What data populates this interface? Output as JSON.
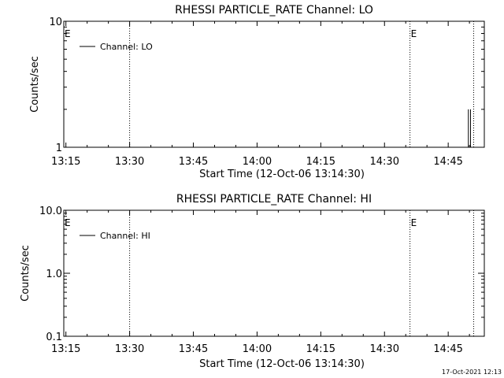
{
  "footer": {
    "timestamp": "17-Oct-2021 12:13"
  },
  "chart_data": [
    {
      "type": "line",
      "title": "RHESSI PARTICLE_RATE Channel: LO",
      "xlabel": "Start Time (12-Oct-06 13:14:30)",
      "ylabel": "Counts/sec",
      "y_scale": "log",
      "ylim": [
        1,
        10
      ],
      "xlim": [
        "13:14:30",
        "14:53:30"
      ],
      "x_ticks": [
        "13:15",
        "13:30",
        "13:45",
        "14:00",
        "14:15",
        "14:30",
        "14:45"
      ],
      "y_ticks": [
        {
          "value": 1,
          "label": "1"
        },
        {
          "value": 10,
          "label": "10"
        }
      ],
      "legend": {
        "position": "top-left",
        "entries": [
          {
            "label": "Channel: LO",
            "color": "#000000"
          }
        ]
      },
      "vlines": [
        {
          "x": "13:30",
          "style": "dotted",
          "label": ""
        },
        {
          "x": "14:36",
          "style": "dotted",
          "label": "E"
        },
        {
          "x": "14:51",
          "style": "dotted",
          "label": ""
        }
      ],
      "edge_marker": "E",
      "series": [
        {
          "label": "Channel: LO",
          "x": [
            "14:49:30",
            "14:49:45",
            "14:50:00",
            "14:50:15",
            "14:50:30"
          ],
          "y": [
            1,
            2,
            1,
            2,
            1
          ]
        }
      ]
    },
    {
      "type": "line",
      "title": "RHESSI PARTICLE_RATE Channel: HI",
      "xlabel": "Start Time (12-Oct-06 13:14:30)",
      "ylabel": "Counts/sec",
      "y_scale": "log",
      "ylim": [
        0.1,
        10
      ],
      "xlim": [
        "13:14:30",
        "14:53:30"
      ],
      "x_ticks": [
        "13:15",
        "13:30",
        "13:45",
        "14:00",
        "14:15",
        "14:30",
        "14:45"
      ],
      "y_ticks": [
        {
          "value": 0.1,
          "label": "0.1"
        },
        {
          "value": 1,
          "label": "1.0"
        },
        {
          "value": 10,
          "label": "10.0"
        }
      ],
      "legend": {
        "position": "top-left",
        "entries": [
          {
            "label": "Channel: HI",
            "color": "#000000"
          }
        ]
      },
      "vlines": [
        {
          "x": "13:30",
          "style": "dotted",
          "label": ""
        },
        {
          "x": "14:36",
          "style": "dotted",
          "label": "E"
        },
        {
          "x": "14:51",
          "style": "dotted",
          "label": ""
        }
      ],
      "edge_marker": "E",
      "series": []
    }
  ]
}
